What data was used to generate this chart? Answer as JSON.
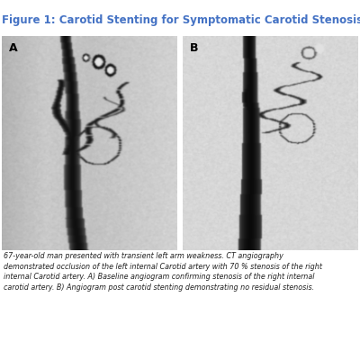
{
  "title": "Figure 1: Carotid Stenting for Symptomatic Carotid Stenosis",
  "title_color": "#4472C4",
  "title_fontsize": 8.5,
  "background_color": "#ffffff",
  "label_A": "A",
  "label_B": "B",
  "caption_line1": "67-year-old man presented with transient left arm weakness. CT angiography",
  "caption_line2": "demonstrated occlusion of the left internal Carotid artery with 70 % stenosis of the right",
  "caption_line3": "internal Carotid artery. A) Baseline angiogram confirming stenosis of the right internal",
  "caption_line4": "carotid artery. B) Angiogram post carotid stenting demonstrating no residual stenosis.",
  "caption_fontsize": 5.8,
  "caption_color": "#222222",
  "divider_color": "#4472C4",
  "bg_gray": 0.82
}
